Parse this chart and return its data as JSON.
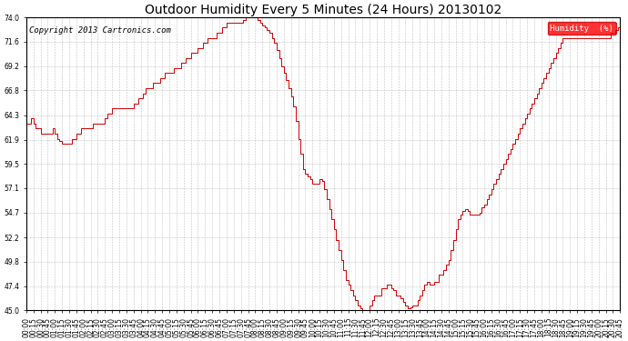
{
  "title": "Outdoor Humidity Every 5 Minutes (24 Hours) 20130102",
  "copyright": "Copyright 2013 Cartronics.com",
  "legend_label": "Humidity  (%)",
  "legend_bg": "#ff0000",
  "legend_text_color": "#ffffff",
  "line_color": "#cc0000",
  "background_color": "#ffffff",
  "grid_color": "#999999",
  "ylim": [
    45.0,
    74.0
  ],
  "yticks": [
    45.0,
    47.4,
    49.8,
    52.2,
    54.7,
    57.1,
    59.5,
    61.9,
    64.3,
    66.8,
    69.2,
    71.6,
    74.0
  ],
  "x_tick_interval": 3,
  "humidity_values": [
    63.5,
    63.5,
    64.0,
    63.5,
    63.0,
    63.0,
    62.5,
    62.5,
    62.5,
    62.5,
    62.5,
    63.0,
    62.5,
    62.0,
    61.8,
    61.5,
    61.5,
    61.5,
    61.5,
    62.0,
    62.0,
    62.5,
    62.5,
    63.0,
    63.0,
    63.0,
    63.0,
    63.0,
    63.5,
    63.5,
    63.5,
    63.5,
    63.5,
    64.0,
    64.5,
    64.5,
    65.0,
    65.0,
    65.0,
    65.0,
    65.0,
    65.0,
    65.0,
    65.0,
    65.0,
    65.5,
    65.5,
    66.0,
    66.0,
    66.5,
    67.0,
    67.0,
    67.0,
    67.5,
    67.5,
    67.5,
    68.0,
    68.0,
    68.5,
    68.5,
    68.5,
    68.5,
    69.0,
    69.0,
    69.0,
    69.5,
    69.5,
    70.0,
    70.0,
    70.5,
    70.5,
    70.5,
    71.0,
    71.0,
    71.5,
    71.5,
    72.0,
    72.0,
    72.0,
    72.0,
    72.5,
    72.5,
    73.0,
    73.0,
    73.5,
    73.5,
    73.5,
    73.5,
    73.5,
    73.5,
    73.5,
    73.8,
    74.0,
    74.1,
    74.3,
    74.3,
    74.2,
    73.8,
    73.5,
    73.2,
    73.0,
    72.8,
    72.5,
    72.0,
    71.5,
    70.8,
    70.0,
    69.2,
    68.5,
    67.8,
    67.0,
    66.2,
    65.2,
    63.8,
    62.0,
    60.5,
    59.0,
    58.5,
    58.3,
    58.0,
    57.5,
    57.5,
    57.5,
    58.0,
    57.8,
    57.0,
    56.0,
    55.0,
    54.0,
    53.0,
    52.0,
    51.0,
    50.0,
    49.0,
    48.0,
    47.5,
    47.0,
    46.5,
    46.0,
    45.5,
    45.2,
    45.0,
    45.0,
    45.0,
    45.5,
    46.0,
    46.5,
    46.5,
    46.5,
    47.2,
    47.2,
    47.5,
    47.5,
    47.2,
    47.0,
    46.5,
    46.5,
    46.2,
    45.8,
    45.5,
    45.2,
    45.3,
    45.5,
    45.5,
    46.0,
    46.5,
    47.0,
    47.5,
    47.8,
    47.5,
    47.5,
    47.8,
    47.8,
    48.5,
    48.5,
    49.0,
    49.5,
    50.0,
    51.0,
    52.0,
    53.0,
    54.0,
    54.5,
    54.8,
    55.0,
    54.8,
    54.5,
    54.5,
    54.5,
    54.5,
    54.7,
    55.2,
    55.5,
    56.0,
    56.5,
    57.0,
    57.5,
    58.0,
    58.5,
    59.0,
    59.5,
    60.0,
    60.5,
    61.0,
    61.5,
    62.0,
    62.5,
    63.0,
    63.5,
    64.0,
    64.5,
    65.0,
    65.5,
    66.0,
    66.5,
    67.0,
    67.5,
    68.0,
    68.5,
    69.0,
    69.5,
    70.0,
    70.5,
    71.0,
    71.5,
    72.0,
    72.0,
    72.0,
    72.0,
    72.0,
    72.0,
    72.0,
    72.0,
    72.0,
    72.0,
    72.0,
    72.0,
    72.0,
    72.0,
    72.0,
    72.0,
    72.0,
    72.0,
    72.0,
    72.0,
    72.5,
    72.5,
    72.8,
    73.0,
    73.2
  ],
  "title_fontsize": 10,
  "tick_fontsize": 5.5,
  "copyright_fontsize": 6.5
}
